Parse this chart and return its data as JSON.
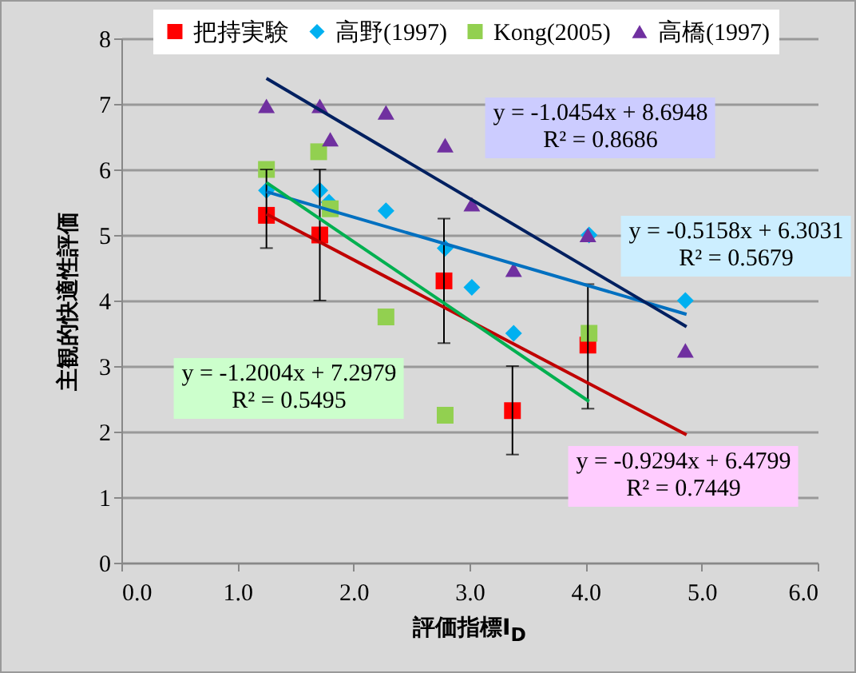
{
  "chart_data": {
    "type": "scatter",
    "xlabel": "評価指標I$_{D}$",
    "ylabel": "主観的快適性評価",
    "xlim": [
      0,
      6
    ],
    "xticks": [
      {
        "value": 0,
        "label": "0.0"
      },
      {
        "value": 1,
        "label": "1.0"
      },
      {
        "value": 2,
        "label": "2.0"
      },
      {
        "value": 3,
        "label": "3.0"
      },
      {
        "value": 4,
        "label": "4.0"
      },
      {
        "value": 5,
        "label": "5.0"
      },
      {
        "value": 6,
        "label": "6.0"
      }
    ],
    "ylim": [
      0,
      8
    ],
    "yticks": [
      0,
      1,
      2,
      3,
      4,
      5,
      6,
      7,
      8
    ],
    "grid": "y",
    "legend": "top",
    "series": [
      {
        "name": "把持実験",
        "color": "#ff0000",
        "marker": "square",
        "x": [
          1.25,
          1.71,
          2.78,
          3.37,
          4.02
        ],
        "values": [
          5.3,
          5.0,
          4.3,
          2.32,
          3.32
        ],
        "errors": [
          [
            4.8,
            6.0
          ],
          [
            4.0,
            6.0
          ],
          [
            3.35,
            5.25
          ],
          [
            1.65,
            3.0
          ],
          [
            2.35,
            4.25
          ]
        ]
      },
      {
        "name": "高野(1997)",
        "color": "#00b0f0",
        "marker": "diamond",
        "x": [
          1.25,
          1.71,
          1.79,
          2.28,
          2.79,
          3.02,
          3.38,
          4.03,
          4.86
        ],
        "values": [
          5.68,
          5.68,
          5.5,
          5.37,
          4.8,
          4.2,
          3.5,
          5.0,
          4.0
        ]
      },
      {
        "name": "Kong(2005)",
        "color": "#92d050",
        "marker": "square",
        "x": [
          1.25,
          1.7,
          1.8,
          2.28,
          2.79,
          4.03
        ],
        "values": [
          6.0,
          6.27,
          5.4,
          3.75,
          2.25,
          3.5
        ]
      },
      {
        "name": "高橋(1997)",
        "color": "#7030a0",
        "marker": "triangle",
        "x": [
          1.25,
          1.71,
          1.8,
          2.28,
          2.79,
          3.02,
          3.38,
          4.02,
          4.86
        ],
        "values": [
          6.97,
          6.97,
          6.46,
          6.87,
          6.37,
          5.47,
          4.47,
          5.0,
          3.24
        ]
      },
      {
        "type": "line",
        "color": "#c00000",
        "x": [
          1.25,
          4.87
        ],
        "values": [
          5.32,
          1.95
        ]
      },
      {
        "type": "line",
        "color": "#0070c0",
        "x": [
          1.25,
          4.87
        ],
        "values": [
          5.66,
          3.79
        ]
      },
      {
        "type": "line",
        "color": "#00b050",
        "x": [
          1.25,
          4.03
        ],
        "values": [
          5.8,
          2.46
        ]
      },
      {
        "type": "line",
        "color": "#002060",
        "x": [
          1.25,
          4.87
        ],
        "values": [
          7.39,
          3.6
        ]
      }
    ],
    "annotations": [
      "y = -1.0454x + 8.6948\nR² = 0.8686",
      "y = -0.5158x + 6.3031\nR² = 0.5679",
      "y = -1.2004x + 7.2979\nR² = 0.5495",
      "y = -0.9294x + 6.4799\nR² = 0.7449"
    ]
  }
}
